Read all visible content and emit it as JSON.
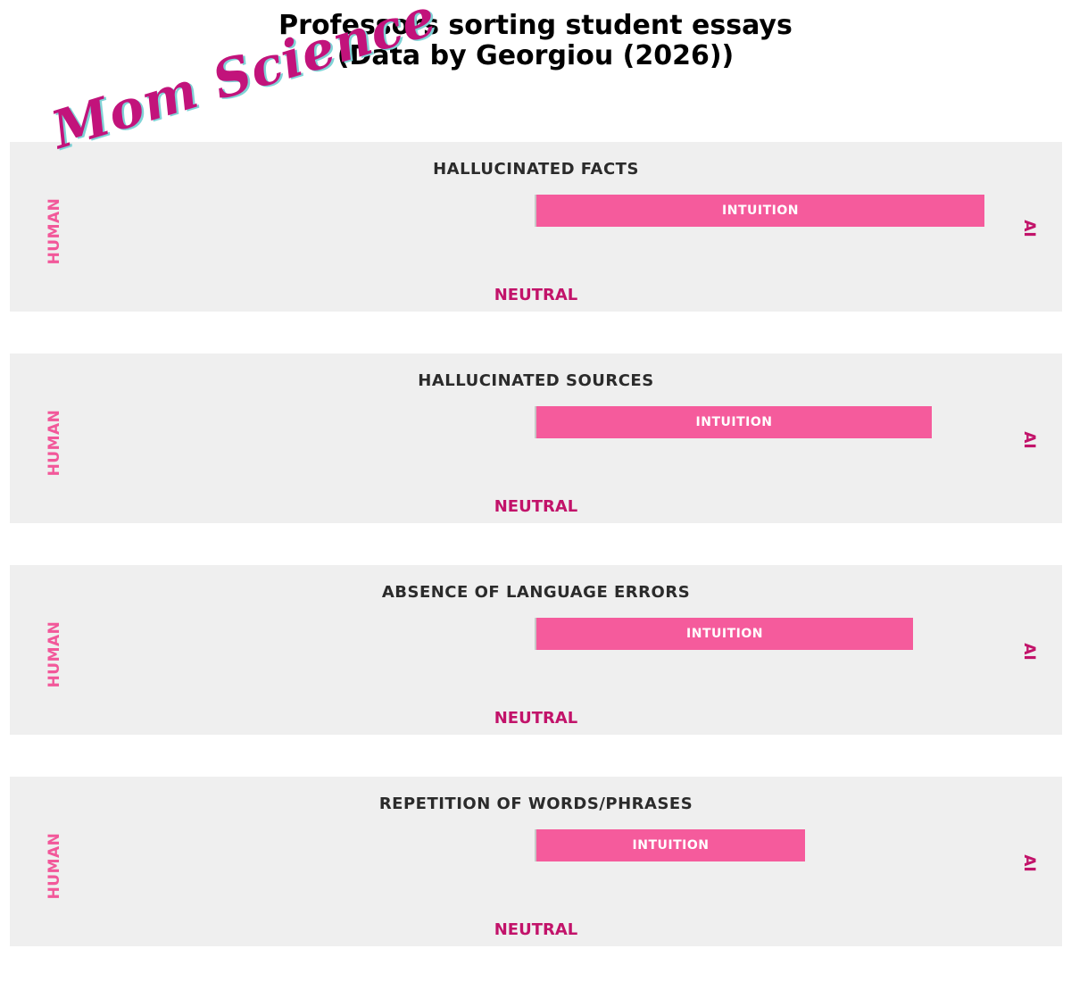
{
  "chart_data": {
    "type": "bar",
    "orientation": "horizontal",
    "title": "Professors sorting student essays",
    "subtitle": "(Data by Georgiou (2026))",
    "watermark": "Mom Science",
    "scale_left_label": "HUMAN",
    "scale_right_label": "AI",
    "scale_center_label": "NEUTRAL",
    "xlim": [
      -1,
      1
    ],
    "bar_color": "#f55b9c",
    "panels": [
      {
        "category": "HALLUCINATED FACTS",
        "bar_label": "INTUITION",
        "value": 0.85
      },
      {
        "category": "HALLUCINATED SOURCES",
        "bar_label": "INTUITION",
        "value": 0.75
      },
      {
        "category": "ABSENCE OF LANGUAGE ERRORS",
        "bar_label": "INTUITION",
        "value": 0.715
      },
      {
        "category": "REPETITION OF WORDS/PHRASES",
        "bar_label": "INTUITION",
        "value": 0.51
      }
    ]
  }
}
